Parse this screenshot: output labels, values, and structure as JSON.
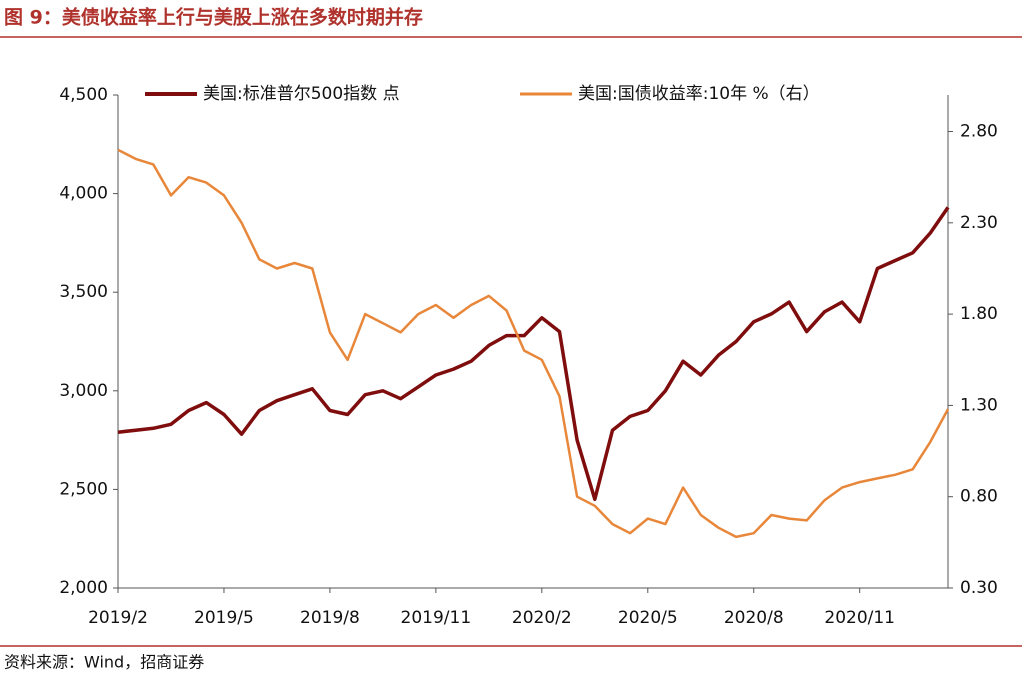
{
  "chart_data": {
    "type": "line",
    "title": "图 9：美债收益率上行与美股上涨在多数时期并存",
    "source": "资料来源：Wind，招商证券",
    "categories": [
      "2019/2",
      null,
      null,
      null,
      null,
      null,
      "2019/5",
      null,
      null,
      null,
      null,
      null,
      "2019/8",
      null,
      null,
      null,
      null,
      null,
      "2019/11",
      null,
      null,
      null,
      null,
      null,
      "2020/2",
      null,
      null,
      null,
      null,
      null,
      "2020/5",
      null,
      null,
      null,
      null,
      null,
      "2020/8",
      null,
      null,
      null,
      null,
      null,
      "2020/11",
      null,
      null,
      null,
      null,
      null
    ],
    "series": [
      {
        "name": "美国:标准普尔500指数 点",
        "color": "#7f0d0d",
        "axis": "y",
        "values": [
          2790,
          2800,
          2810,
          2830,
          2900,
          2940,
          2880,
          2780,
          2900,
          2950,
          2980,
          3010,
          2900,
          2880,
          2980,
          3000,
          2960,
          3020,
          3080,
          3110,
          3150,
          3230,
          3280,
          3280,
          3370,
          3300,
          2750,
          2450,
          2800,
          2870,
          2900,
          3000,
          3150,
          3080,
          3180,
          3250,
          3350,
          3390,
          3450,
          3300,
          3400,
          3450,
          3350,
          3620,
          3660,
          3700,
          3800,
          3930
        ]
      },
      {
        "name": "美国:国债收益率:10年 %（右）",
        "color": "#e8873a",
        "axis": "y2",
        "values": [
          2.7,
          2.65,
          2.62,
          2.45,
          2.55,
          2.52,
          2.45,
          2.3,
          2.1,
          2.05,
          2.08,
          2.05,
          1.7,
          1.55,
          1.8,
          1.75,
          1.7,
          1.8,
          1.85,
          1.78,
          1.85,
          1.9,
          1.82,
          1.6,
          1.55,
          1.35,
          0.8,
          0.75,
          0.65,
          0.6,
          0.68,
          0.65,
          0.85,
          0.7,
          0.63,
          0.58,
          0.6,
          0.7,
          0.68,
          0.67,
          0.78,
          0.85,
          0.88,
          0.9,
          0.92,
          0.95,
          1.1,
          1.28
        ]
      }
    ],
    "ylim": [
      2000,
      4500
    ],
    "yticks": [
      {
        "value": 2000,
        "label": "2,000"
      },
      {
        "value": 2500,
        "label": "2,500"
      },
      {
        "value": 3000,
        "label": "3,000"
      },
      {
        "value": 3500,
        "label": "3,500"
      },
      {
        "value": 4000,
        "label": "4,000"
      },
      {
        "value": 4500,
        "label": "4,500"
      }
    ],
    "y2lim": [
      0.3,
      3.0
    ],
    "y2ticks": [
      {
        "value": 0.3,
        "label": "0.30"
      },
      {
        "value": 0.8,
        "label": "0.80"
      },
      {
        "value": 1.3,
        "label": "1.30"
      },
      {
        "value": 1.8,
        "label": "1.80"
      },
      {
        "value": 2.3,
        "label": "2.30"
      },
      {
        "value": 2.8,
        "label": "2.80"
      }
    ],
    "legend": "top"
  }
}
